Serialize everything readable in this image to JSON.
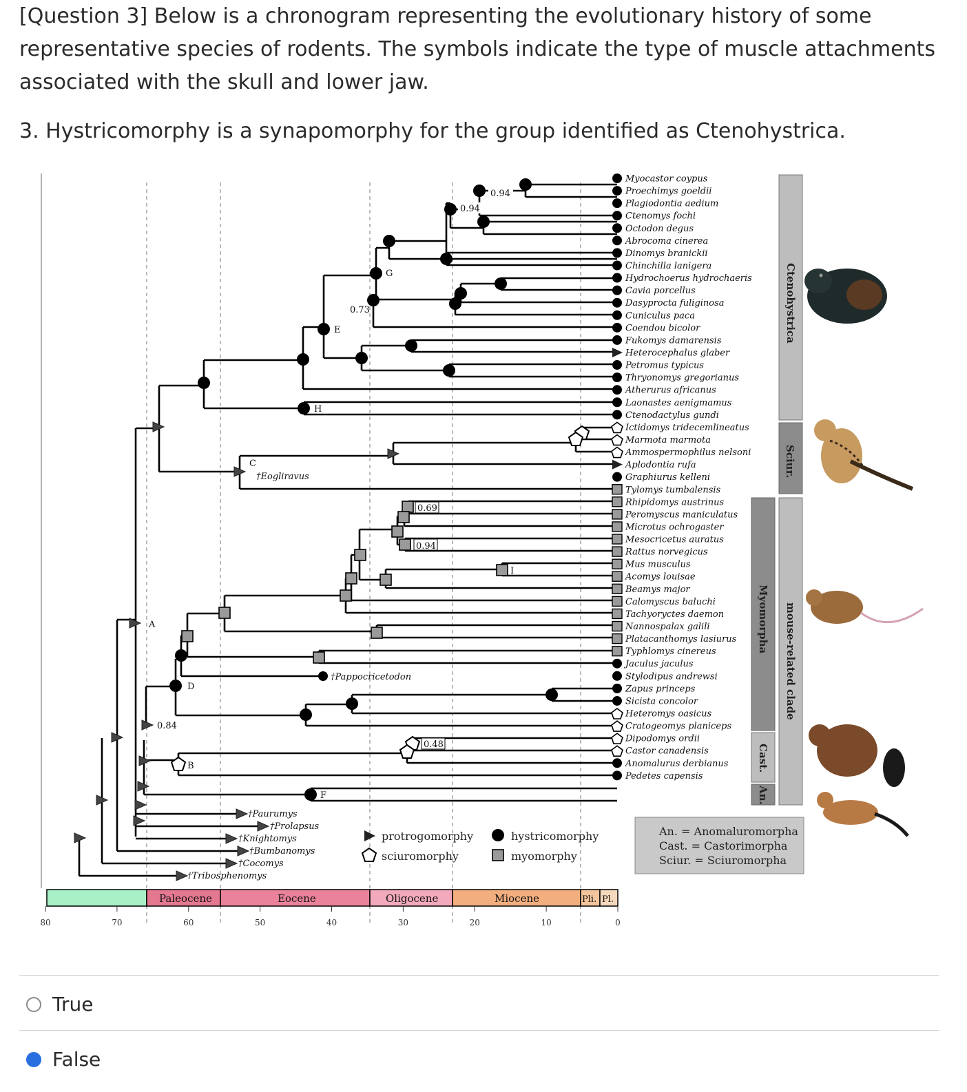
{
  "question": {
    "prompt": "[Question 3] Below is a chronogram representing the evolutionary history of some representative species of rodents. The symbols indicate the type of muscle attachments associated with the skull and lower jaw.",
    "statement": "3. Hystricomorphy is a synapomorphy for the group identified as Ctenohystrica."
  },
  "figure": {
    "taxa": [
      {
        "name": "Myocastor coypus",
        "state": "hystricomorphy"
      },
      {
        "name": "Proechimys goeldii",
        "state": "hystricomorphy"
      },
      {
        "name": "Plagiodontia aedium",
        "state": "hystricomorphy"
      },
      {
        "name": "Ctenomys fochi",
        "state": "hystricomorphy"
      },
      {
        "name": "Octodon degus",
        "state": "hystricomorphy"
      },
      {
        "name": "Abrocoma cinerea",
        "state": "hystricomorphy"
      },
      {
        "name": "Dinomys branickii",
        "state": "hystricomorphy"
      },
      {
        "name": "Chinchilla lanigera",
        "state": "hystricomorphy"
      },
      {
        "name": "Hydrochoerus hydrochaeris",
        "state": "hystricomorphy"
      },
      {
        "name": "Cavia porcellus",
        "state": "hystricomorphy"
      },
      {
        "name": "Dasyprocta fuliginosa",
        "state": "hystricomorphy"
      },
      {
        "name": "Cuniculus paca",
        "state": "hystricomorphy"
      },
      {
        "name": "Coendou bicolor",
        "state": "hystricomorphy"
      },
      {
        "name": "Fukomys damarensis",
        "state": "hystricomorphy"
      },
      {
        "name": "Heterocephalus glaber",
        "state": "protrogomorphy"
      },
      {
        "name": "Petromus typicus",
        "state": "hystricomorphy"
      },
      {
        "name": "Thryonomys gregorianus",
        "state": "hystricomorphy"
      },
      {
        "name": "Atherurus africanus",
        "state": "hystricomorphy"
      },
      {
        "name": "Laonastes aenigmamus",
        "state": "hystricomorphy"
      },
      {
        "name": "Ctenodactylus gundi",
        "state": "hystricomorphy"
      },
      {
        "name": "Ictidomys tridecemlineatus",
        "state": "sciuromorphy"
      },
      {
        "name": "Marmota marmota",
        "state": "sciuromorphy"
      },
      {
        "name": "Ammospermophilus nelsoni",
        "state": "sciuromorphy"
      },
      {
        "name": "Aplodontia rufa",
        "state": "protrogomorphy"
      },
      {
        "name": "Graphiurus kelleni",
        "state": "hystricomorphy"
      },
      {
        "name": "Tylomys tumbalensis",
        "state": "myomorphy"
      },
      {
        "name": "Rhipidomys austrinus",
        "state": "myomorphy"
      },
      {
        "name": "Peromyscus maniculatus",
        "state": "myomorphy"
      },
      {
        "name": "Microtus ochrogaster",
        "state": "myomorphy"
      },
      {
        "name": "Mesocricetus auratus",
        "state": "myomorphy"
      },
      {
        "name": "Rattus norvegicus",
        "state": "myomorphy"
      },
      {
        "name": "Mus musculus",
        "state": "myomorphy"
      },
      {
        "name": "Acomys louisae",
        "state": "myomorphy"
      },
      {
        "name": "Beamys major",
        "state": "myomorphy"
      },
      {
        "name": "Calomyscus baluchi",
        "state": "myomorphy"
      },
      {
        "name": "Tachyoryctes daemon",
        "state": "myomorphy"
      },
      {
        "name": "Nannospalax galili",
        "state": "myomorphy"
      },
      {
        "name": "Platacanthomys lasiurus",
        "state": "myomorphy"
      },
      {
        "name": "Typhlomys cinereus",
        "state": "myomorphy"
      },
      {
        "name": "Jaculus jaculus",
        "state": "hystricomorphy"
      },
      {
        "name": "Stylodipus andrewsi",
        "state": "hystricomorphy"
      },
      {
        "name": "Zapus princeps",
        "state": "hystricomorphy"
      },
      {
        "name": "Sicista concolor",
        "state": "hystricomorphy"
      },
      {
        "name": "Heteromys oasicus",
        "state": "sciuromorphy"
      },
      {
        "name": "Cratogeomys planiceps",
        "state": "sciuromorphy"
      },
      {
        "name": "Dipodomys ordii",
        "state": "sciuromorphy"
      },
      {
        "name": "Castor canadensis",
        "state": "sciuromorphy"
      },
      {
        "name": "Anomalurus derbianus",
        "state": "hystricomorphy"
      },
      {
        "name": "Pedetes capensis",
        "state": "hystricomorphy"
      }
    ],
    "fossils": {
      "eogliravus": "†Eogliravus",
      "pappocricetodon": "†Pappocricetodon",
      "paurumys": "†Paurumys",
      "prolapsus": "†Prolapsus",
      "knightomys": "†Knightomys",
      "bumbanomys": "†Bumbanomys",
      "cocomys": "†Cocomys",
      "tribosphenomys": "†Tribosphenomys"
    },
    "node_labels": {
      "A": "A",
      "B": "B",
      "C": "C",
      "D": "D",
      "E": "E",
      "F": "F",
      "G": "G",
      "H": "H",
      "I": "I"
    },
    "support_values": {
      "s1": "0.94",
      "s2": "0.94",
      "s3": "0.73",
      "s4": "0.69",
      "s5": "0.94",
      "s6": "0.48",
      "s7": "0.84"
    },
    "clades": {
      "ctenohystrica": "Ctenohystrica",
      "sciur": "Sciur.",
      "myomorpha": "Myomorpha",
      "mouse_related": "mouse-related clade",
      "cast": "Cast.",
      "an": "An."
    },
    "legend": {
      "protrogomorphy": "protrogomorphy",
      "sciuromorphy": "sciuromorphy",
      "hystricomorphy": "hystricomorphy",
      "myomorphy": "myomorphy"
    },
    "abbreviations": {
      "an": "An. = Anomaluromorpha",
      "cast": "Cast. = Castorimorpha",
      "sciur": "Sciur. = Sciuromorpha"
    },
    "epochs": {
      "paleocene": "Paleocene",
      "eocene": "Eocene",
      "oligocene": "Oligocene",
      "miocene": "Miocene",
      "pliocene": "Pli.",
      "pleistocene": "Pl."
    },
    "epoch_colors": {
      "cretaceous": "#a8f0c6",
      "paleocene": "#e47891",
      "eocene": "#e9829a",
      "oligocene": "#f1a9bb",
      "miocene": "#f2ae7f",
      "pliocene": "#f4c59c",
      "pleistocene": "#f6d9bd"
    },
    "axis_ticks": [
      "80",
      "70",
      "60",
      "50",
      "40",
      "30",
      "20",
      "10",
      "0"
    ]
  },
  "options": {
    "true_label": "True",
    "false_label": "False",
    "selected": "False"
  }
}
